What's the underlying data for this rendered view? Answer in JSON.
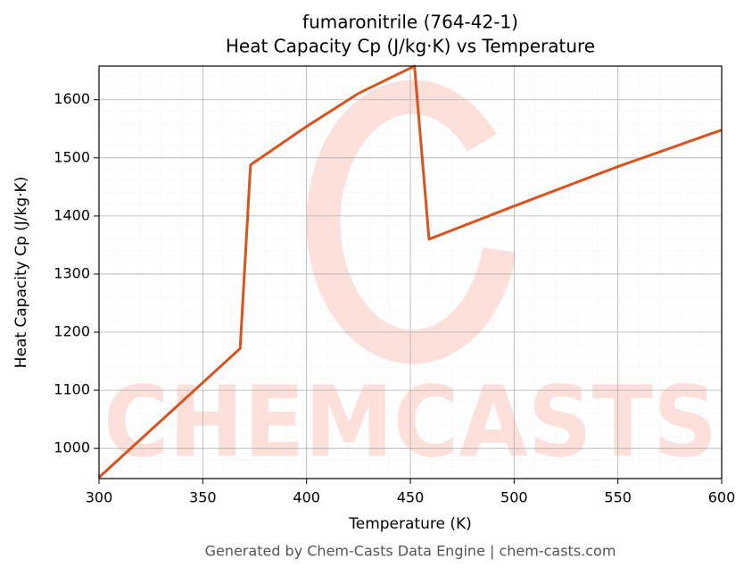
{
  "chart_data": {
    "type": "line",
    "title": "fumaronitrile (764-42-1)",
    "subtitle": "Heat Capacity Cp (J/kg·K) vs Temperature",
    "x_label": "Temperature (K)",
    "y_label": "Heat Capacity Cp (J/kg·K)",
    "x": [
      300,
      368,
      373,
      400,
      425,
      452,
      459,
      500,
      550,
      600
    ],
    "series": [
      {
        "name": "Cp",
        "color": "#d9531e",
        "values": [
          950,
          1172,
          1488,
          1554,
          1611,
          1658,
          1360,
          1417,
          1485,
          1548
        ]
      }
    ],
    "xlim": [
      300,
      600
    ],
    "xticks": [
      300,
      350,
      400,
      450,
      500,
      550,
      600
    ],
    "ylim": [
      948,
      1658
    ],
    "yticks": [
      1000,
      1100,
      1200,
      1300,
      1400,
      1500,
      1600
    ],
    "grid": true,
    "minor_grid": true,
    "watermark": "CHEMCASTS",
    "footer": "Generated by Chem-Casts Data Engine | chem-casts.com"
  }
}
